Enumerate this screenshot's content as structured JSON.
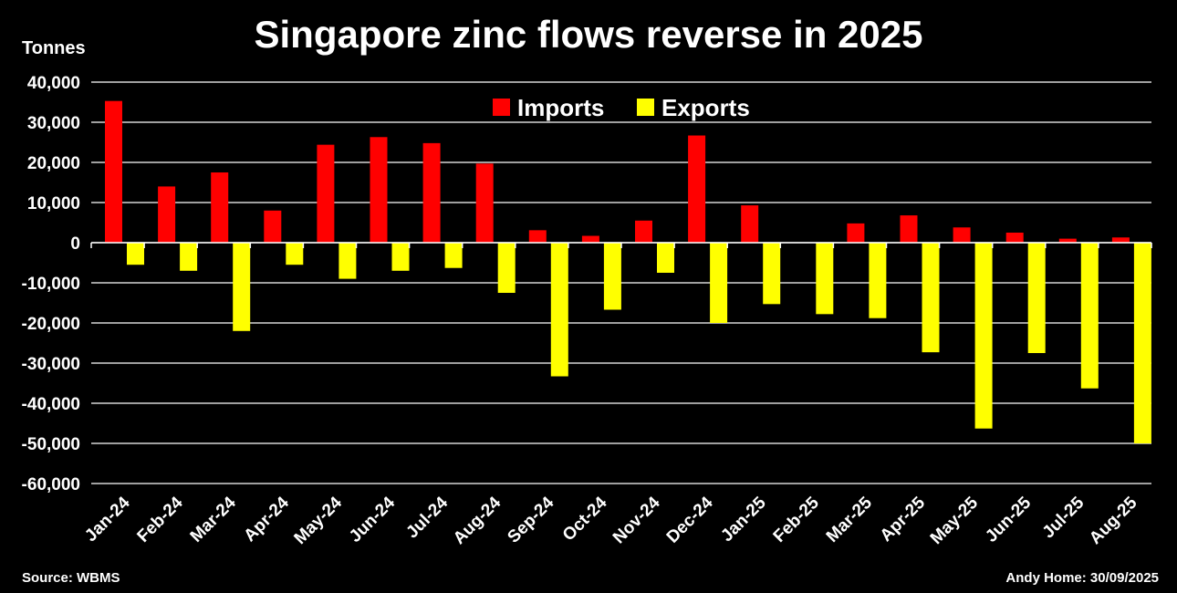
{
  "chart_data": {
    "type": "bar",
    "title": "Singapore zinc flows reverse in 2025",
    "ylabel": "Tonnes",
    "ylim": [
      -60000,
      40000
    ],
    "yticks": [
      40000,
      30000,
      20000,
      10000,
      0,
      -10000,
      -20000,
      -30000,
      -40000,
      -50000,
      -60000
    ],
    "ytick_labels": [
      "40,000",
      "30,000",
      "20,000",
      "10,000",
      "0",
      "-10,000",
      "-20,000",
      "-30,000",
      "-40,000",
      "-50,000",
      "-60,000"
    ],
    "grid": true,
    "legend_position": "top-center",
    "categories": [
      "Jan-24",
      "Feb-24",
      "Mar-24",
      "Apr-24",
      "May-24",
      "Jun-24",
      "Jul-24",
      "Aug-24",
      "Sep-24",
      "Oct-24",
      "Nov-24",
      "Dec-24",
      "Jan-25",
      "Feb-25",
      "Mar-25",
      "Apr-25",
      "May-25",
      "Jun-25",
      "Jul-25",
      "Aug-25"
    ],
    "series": [
      {
        "name": "Imports",
        "color": "#ff0000",
        "values": [
          35300,
          14000,
          17500,
          8000,
          24400,
          26300,
          24800,
          19700,
          3100,
          1700,
          5500,
          26700,
          9300,
          0,
          4800,
          6800,
          3800,
          2500,
          1000,
          1300
        ]
      },
      {
        "name": "Exports",
        "color": "#ffff00",
        "values": [
          -5500,
          -7000,
          -22000,
          -5500,
          -9000,
          -7000,
          -6300,
          -12500,
          -33300,
          -16700,
          -7500,
          -20000,
          -15300,
          -17800,
          -18800,
          -27300,
          -46300,
          -27500,
          -36300,
          -50000
        ]
      }
    ]
  },
  "footer": {
    "source": "Source: WBMS",
    "credit": "Andy Home: 30/09/2025"
  }
}
